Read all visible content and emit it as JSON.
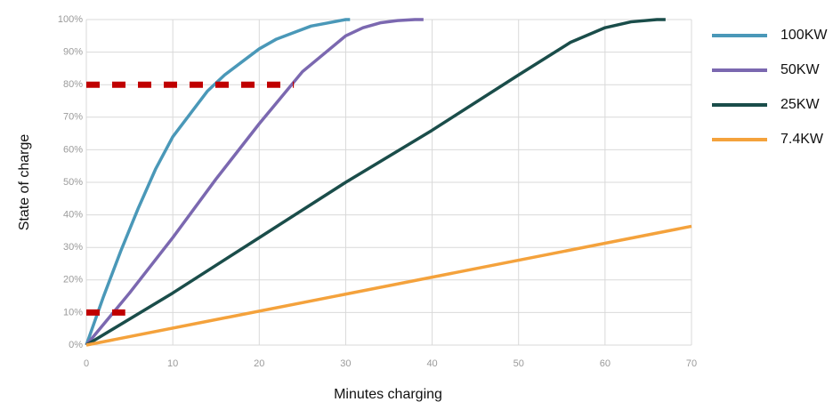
{
  "chart_data": {
    "type": "line",
    "x_label": "Minutes charging",
    "y_label": "State of charge",
    "xlim": [
      0,
      70
    ],
    "xticks": [
      0,
      10,
      20,
      30,
      40,
      50,
      60,
      70
    ],
    "ylim": [
      0,
      100
    ],
    "yticks": [
      {
        "value": 0,
        "label": "0%"
      },
      {
        "value": 10,
        "label": "10%"
      },
      {
        "value": 20,
        "label": "20%"
      },
      {
        "value": 30,
        "label": "30%"
      },
      {
        "value": 40,
        "label": "40%"
      },
      {
        "value": 50,
        "label": "50%"
      },
      {
        "value": 60,
        "label": "60%"
      },
      {
        "value": 70,
        "label": "70%"
      },
      {
        "value": 80,
        "label": "80%"
      },
      {
        "value": 90,
        "label": "90%"
      },
      {
        "value": 100,
        "label": "100%"
      }
    ],
    "grid": true,
    "legend": "right",
    "series": [
      {
        "name": "100KW",
        "color": "#4a98b8",
        "x": [
          0,
          2,
          4,
          6,
          8,
          10,
          12,
          14,
          16,
          18,
          20,
          22,
          24,
          26,
          28,
          30,
          30.5
        ],
        "values": [
          0,
          15,
          29,
          42,
          54,
          64,
          71,
          78,
          83,
          87,
          91,
          94,
          96,
          98,
          99,
          100,
          100
        ]
      },
      {
        "name": "50KW",
        "color": "#7b68b0",
        "x": [
          0,
          5,
          10,
          15,
          20,
          25,
          30,
          32,
          34,
          36,
          38,
          39
        ],
        "values": [
          0,
          16,
          33,
          51,
          68,
          84,
          95,
          97.5,
          99,
          99.7,
          100,
          100
        ]
      },
      {
        "name": "25KW",
        "color": "#1a4d4a",
        "x": [
          0,
          10,
          20,
          30,
          40,
          50,
          56,
          60,
          63,
          66,
          67
        ],
        "values": [
          0,
          16,
          33,
          50,
          66,
          83,
          93,
          97.5,
          99.3,
          100,
          100
        ]
      },
      {
        "name": "7.4KW",
        "color": "#f4a23c",
        "x": [
          0,
          70
        ],
        "values": [
          0,
          36.5
        ]
      }
    ],
    "reference_lines": [
      {
        "color": "#c00000",
        "y": 80,
        "x": [
          0,
          24
        ]
      },
      {
        "color": "#c00000",
        "y": 10,
        "x": [
          0,
          4.5
        ]
      }
    ]
  }
}
